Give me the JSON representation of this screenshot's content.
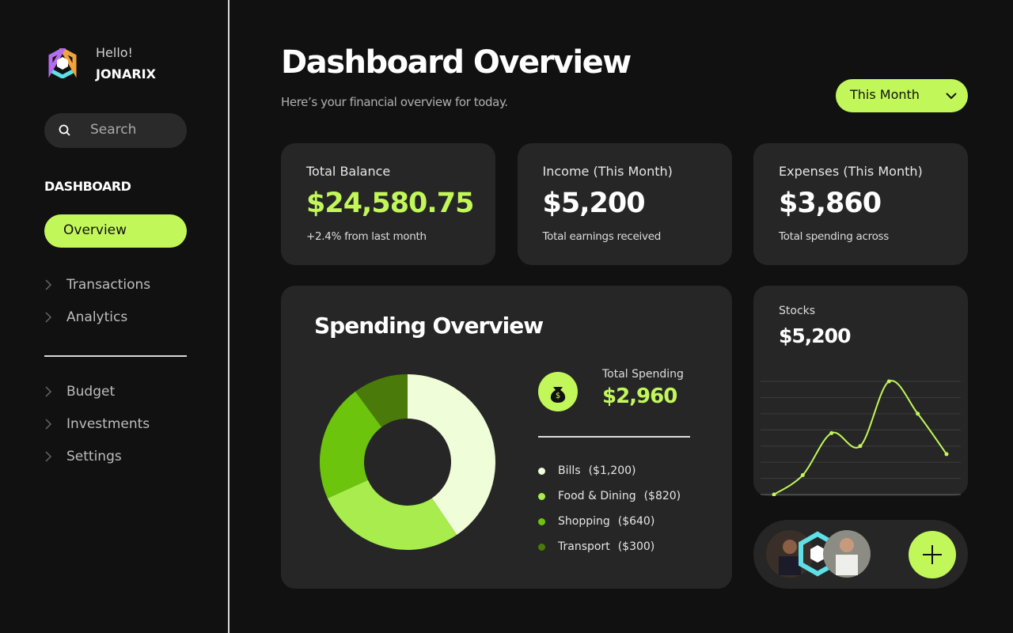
{
  "sidebar": {
    "greeting": "Hello!",
    "user": "JONARIX",
    "search_placeholder": "Search",
    "section": "DASHBOARD",
    "active": "Overview",
    "nav": [
      "Transactions",
      "Analytics"
    ],
    "nav2": [
      "Budget",
      "Investments",
      "Settings"
    ]
  },
  "header": {
    "title": "Dashboard Overview",
    "subtitle": "Here’s your financial overview for today.",
    "period": "This Month"
  },
  "cards": [
    {
      "label": "Total Balance",
      "value": "$24,580.75",
      "note": "+2.4% from last month",
      "color": "#c2f75a"
    },
    {
      "label": "Income (This Month)",
      "value": "$5,200",
      "note": "Total earnings received",
      "color": "#ffffff"
    },
    {
      "label": "Expenses (This Month)",
      "value": "$3,860",
      "note": "Total spending across",
      "color": "#ffffff"
    }
  ],
  "spending": {
    "title": "Spending Overview",
    "total_label": "Total Spending",
    "total": "$2,960",
    "segments": [
      {
        "name": "Bills",
        "value": 1200,
        "value_label": "($1,200)",
        "color": "#effdd9"
      },
      {
        "name": "Food & Dining",
        "value": 820,
        "value_label": "($820)",
        "color": "#a8ec4d"
      },
      {
        "name": "Shopping",
        "value": 640,
        "value_label": "($640)",
        "color": "#6cc40c"
      },
      {
        "name": "Transport",
        "value": 300,
        "value_label": "($300)",
        "color": "#4a7a0a"
      }
    ]
  },
  "stocks": {
    "label": "Stocks",
    "value": "$5,200",
    "color": "#c2f75a",
    "values": [
      0,
      1.2,
      3.8,
      3.0,
      7.0,
      5.0,
      2.5
    ],
    "ylim": [
      0,
      7
    ],
    "yticks": [
      0,
      1,
      2,
      3,
      4,
      5,
      6,
      7
    ]
  }
}
